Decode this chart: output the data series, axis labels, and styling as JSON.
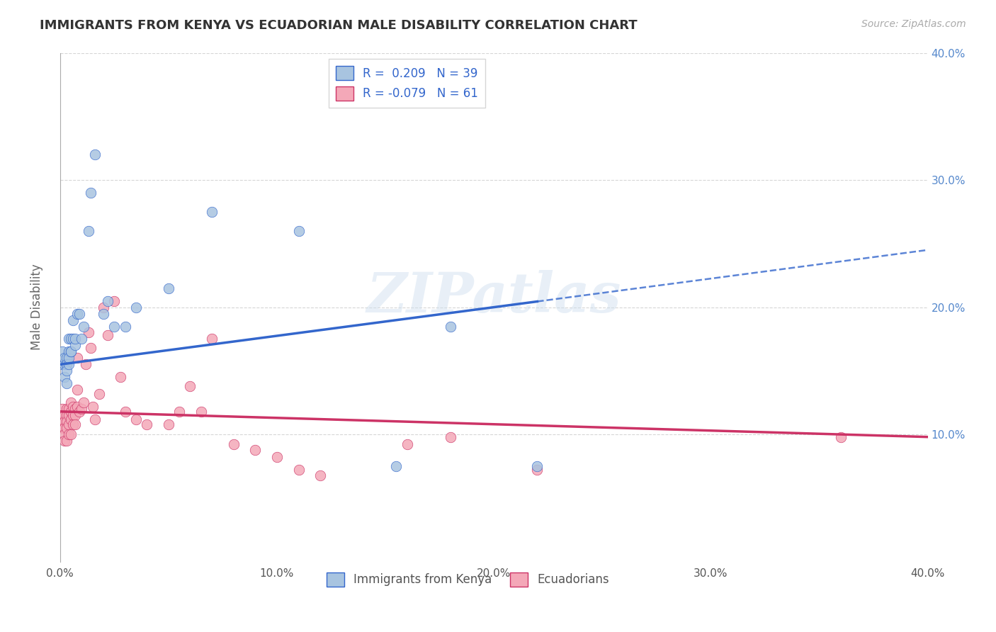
{
  "title": "IMMIGRANTS FROM KENYA VS ECUADORIAN MALE DISABILITY CORRELATION CHART",
  "source": "Source: ZipAtlas.com",
  "xlabel": "",
  "ylabel": "Male Disability",
  "xlim": [
    0.0,
    0.4
  ],
  "ylim": [
    0.0,
    0.4
  ],
  "xtick_labels": [
    "0.0%",
    "10.0%",
    "20.0%",
    "30.0%",
    "40.0%"
  ],
  "xtick_vals": [
    0.0,
    0.1,
    0.2,
    0.3,
    0.4
  ],
  "ytick_labels": [
    "10.0%",
    "20.0%",
    "30.0%",
    "40.0%"
  ],
  "ytick_vals": [
    0.1,
    0.2,
    0.3,
    0.4
  ],
  "right_ytick_labels": [
    "10.0%",
    "20.0%",
    "30.0%",
    "40.0%"
  ],
  "right_ytick_vals": [
    0.1,
    0.2,
    0.3,
    0.4
  ],
  "legend_kenya_label": "R =  0.209   N = 39",
  "legend_ecuador_label": "R = -0.079   N = 61",
  "legend_bottom_kenya": "Immigrants from Kenya",
  "legend_bottom_ecuador": "Ecuadorians",
  "kenya_color": "#a8c4e0",
  "ecuador_color": "#f4a8b8",
  "kenya_line_color": "#3366cc",
  "ecuador_line_color": "#cc3366",
  "kenya_line_x0": 0.0,
  "kenya_line_x1": 0.4,
  "kenya_line_y0": 0.155,
  "kenya_line_y1": 0.245,
  "kenya_line_solid_x1": 0.22,
  "kenya_line_dashed_x0": 0.22,
  "ecuador_line_x0": 0.0,
  "ecuador_line_x1": 0.4,
  "ecuador_line_y0": 0.118,
  "ecuador_line_y1": 0.098,
  "kenya_x": [
    0.001,
    0.001,
    0.002,
    0.002,
    0.002,
    0.003,
    0.003,
    0.003,
    0.003,
    0.003,
    0.004,
    0.004,
    0.004,
    0.004,
    0.005,
    0.005,
    0.005,
    0.006,
    0.006,
    0.007,
    0.007,
    0.008,
    0.009,
    0.01,
    0.011,
    0.013,
    0.014,
    0.016,
    0.02,
    0.022,
    0.025,
    0.03,
    0.035,
    0.05,
    0.07,
    0.11,
    0.155,
    0.18,
    0.22
  ],
  "kenya_y": [
    0.155,
    0.165,
    0.155,
    0.16,
    0.145,
    0.155,
    0.16,
    0.155,
    0.15,
    0.14,
    0.155,
    0.165,
    0.16,
    0.175,
    0.165,
    0.165,
    0.175,
    0.19,
    0.175,
    0.17,
    0.175,
    0.195,
    0.195,
    0.175,
    0.185,
    0.26,
    0.29,
    0.32,
    0.195,
    0.205,
    0.185,
    0.185,
    0.2,
    0.215,
    0.275,
    0.26,
    0.075,
    0.185,
    0.075
  ],
  "ecuador_x": [
    0.001,
    0.001,
    0.001,
    0.001,
    0.002,
    0.002,
    0.002,
    0.002,
    0.002,
    0.003,
    0.003,
    0.003,
    0.003,
    0.003,
    0.004,
    0.004,
    0.004,
    0.004,
    0.005,
    0.005,
    0.005,
    0.005,
    0.006,
    0.006,
    0.006,
    0.007,
    0.007,
    0.007,
    0.008,
    0.008,
    0.008,
    0.009,
    0.01,
    0.011,
    0.012,
    0.013,
    0.014,
    0.015,
    0.016,
    0.018,
    0.02,
    0.022,
    0.025,
    0.028,
    0.03,
    0.035,
    0.04,
    0.05,
    0.055,
    0.06,
    0.065,
    0.07,
    0.08,
    0.09,
    0.1,
    0.11,
    0.12,
    0.16,
    0.18,
    0.22,
    0.36
  ],
  "ecuador_y": [
    0.12,
    0.115,
    0.11,
    0.105,
    0.115,
    0.11,
    0.105,
    0.1,
    0.095,
    0.12,
    0.115,
    0.11,
    0.105,
    0.095,
    0.12,
    0.115,
    0.108,
    0.1,
    0.125,
    0.118,
    0.112,
    0.1,
    0.122,
    0.115,
    0.108,
    0.12,
    0.115,
    0.108,
    0.16,
    0.135,
    0.122,
    0.118,
    0.12,
    0.125,
    0.155,
    0.18,
    0.168,
    0.122,
    0.112,
    0.132,
    0.2,
    0.178,
    0.205,
    0.145,
    0.118,
    0.112,
    0.108,
    0.108,
    0.118,
    0.138,
    0.118,
    0.175,
    0.092,
    0.088,
    0.082,
    0.072,
    0.068,
    0.092,
    0.098,
    0.072,
    0.098
  ],
  "watermark": "ZIPatlas",
  "background_color": "#ffffff",
  "grid_color": "#cccccc",
  "title_color": "#333333",
  "axis_label_color": "#666666"
}
